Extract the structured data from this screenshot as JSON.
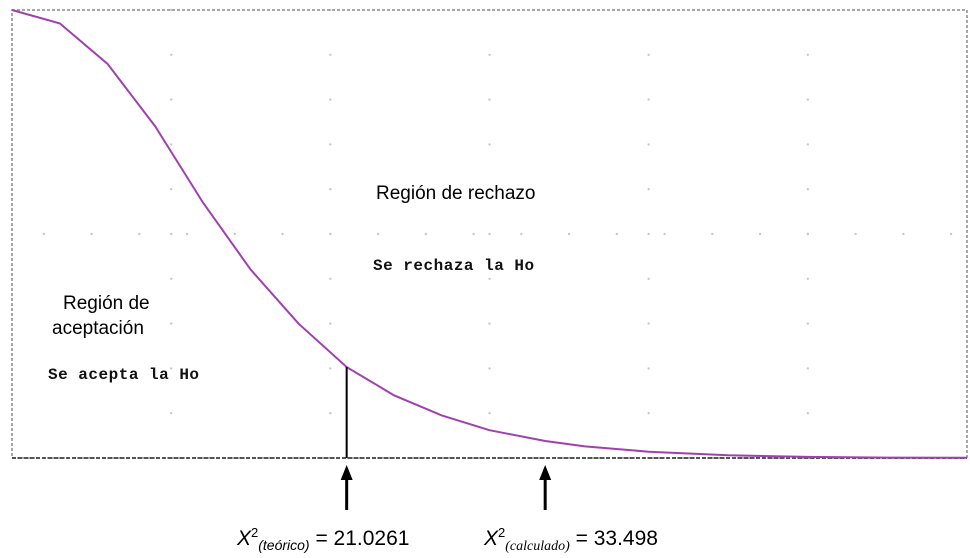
{
  "chart_data": {
    "type": "line",
    "title": "",
    "xlabel": "",
    "ylabel": "",
    "grid": true,
    "series": [
      {
        "values_description": "",
        "x": [
          0,
          3,
          6,
          9,
          12,
          15,
          18,
          21.0261,
          24,
          27,
          30,
          33.498,
          36,
          40,
          45,
          50,
          55,
          60
        ],
        "y": [
          1.0,
          0.97,
          0.88,
          0.74,
          0.57,
          0.42,
          0.3,
          0.203,
          0.14,
          0.095,
          0.062,
          0.038,
          0.026,
          0.014,
          0.006,
          0.0025,
          0.001,
          0.0004
        ]
      }
    ],
    "xlim": [
      0,
      60
    ],
    "ylim": [
      0,
      1
    ],
    "critical_lines": [
      21.0261
    ],
    "arrows_at": [
      21.0261,
      33.498
    ]
  },
  "regions": {
    "rejection_title": "Región de rechazo",
    "rejection_note": "Se rechaza la Ho",
    "acceptance_title_line1": "Región de",
    "acceptance_title_line2": "aceptación",
    "acceptance_note": "Se acepta la Ho"
  },
  "formulas": {
    "theoretical": {
      "symbol": "X",
      "sup": "2",
      "sub": "(teórico)",
      "equals": " = ",
      "value": "21.0261"
    },
    "calculated": {
      "symbol": "X",
      "sup": "2",
      "sub": "(calculado)",
      "equals": " = ",
      "value": "33.498"
    }
  },
  "colors": {
    "curve": "#a040b0",
    "frame": "#7a7a7a",
    "axis": "#555555",
    "grid_dot": "#c8c8c8"
  }
}
